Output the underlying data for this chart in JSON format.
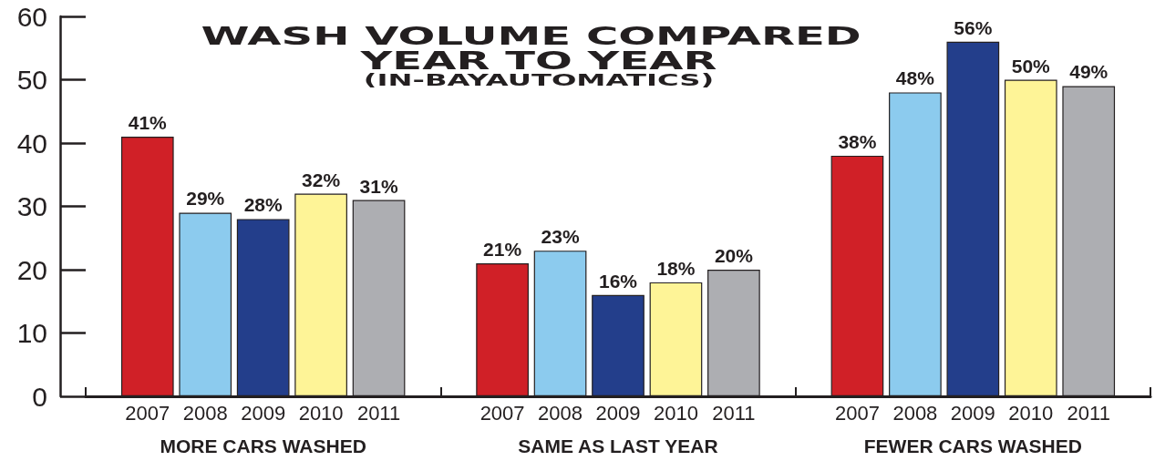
{
  "chart_data": {
    "type": "bar",
    "title": "WASH VOLUME COMPARED YEAR TO YEAR",
    "subtitle": "(IN-BAYAUTOMATICS)",
    "categories": [
      "MORE CARS WASHED",
      "SAME AS LAST YEAR",
      "FEWER CARS WASHED"
    ],
    "series": [
      {
        "name": "2007",
        "color": "#d02027",
        "values": [
          41,
          21,
          38
        ],
        "value_labels": [
          "41%",
          "21%",
          "38%"
        ]
      },
      {
        "name": "2008",
        "color": "#8ccbee",
        "values": [
          29,
          23,
          48
        ],
        "value_labels": [
          "29%",
          "23%",
          "48%"
        ]
      },
      {
        "name": "2009",
        "color": "#233e8b",
        "values": [
          28,
          16,
          56
        ],
        "value_labels": [
          "28%",
          "16%",
          "56%"
        ]
      },
      {
        "name": "2010",
        "color": "#fef497",
        "values": [
          32,
          18,
          50
        ],
        "value_labels": [
          "32%",
          "18%",
          "50%"
        ]
      },
      {
        "name": "2011",
        "color": "#adaeb2",
        "values": [
          31,
          20,
          49
        ],
        "value_labels": [
          "31%",
          "20%",
          "49%"
        ]
      }
    ],
    "ylim": [
      0,
      60
    ],
    "yticks": [
      0,
      10,
      20,
      30,
      40,
      50,
      60
    ]
  }
}
